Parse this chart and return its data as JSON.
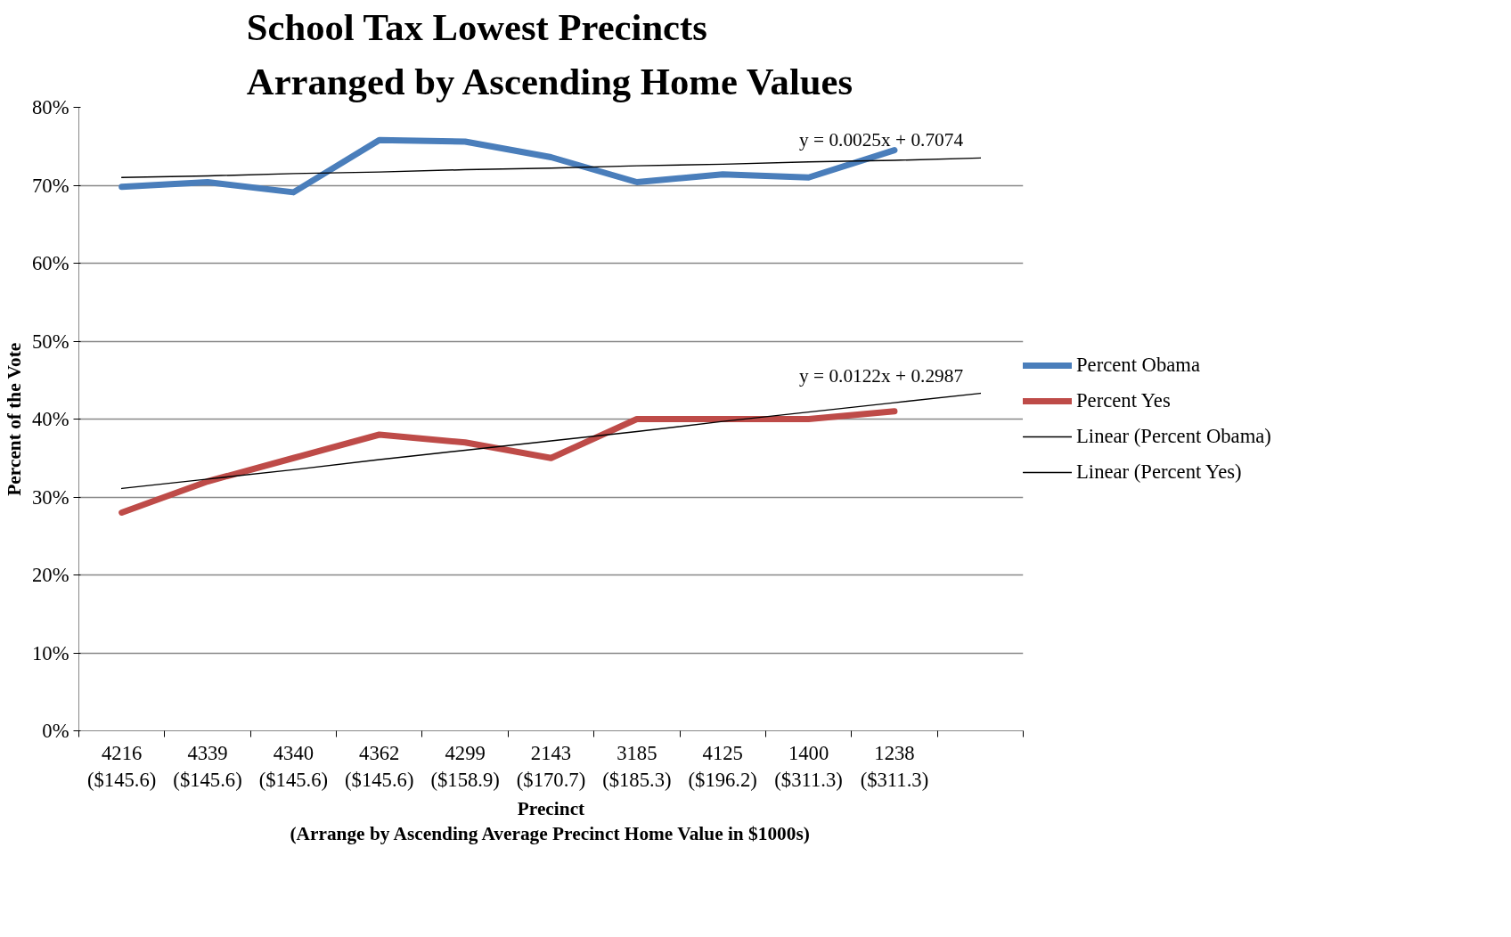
{
  "chart_data": {
    "type": "line",
    "title": "School Tax Lowest Precincts\nArranged by Ascending Home Values",
    "xlabel": "Precinct\n(Arrange by Ascending Average Precinct Home Value in $1000s)",
    "ylabel": "Percent of the Vote",
    "categories": [
      "4216\n($145.6)",
      "4339\n($145.6)",
      "4340\n($145.6)",
      "4362\n($145.6)",
      "4299\n($158.9)",
      "2143\n($170.7)",
      "3185\n($185.3)",
      "4125\n($196.2)",
      "1400\n($311.3)",
      "1238\n($311.3)",
      null
    ],
    "series": [
      {
        "name": "Percent Obama",
        "color": "#4a7ebb",
        "values": [
          69.8,
          70.4,
          69.1,
          75.8,
          75.6,
          73.6,
          70.4,
          71.4,
          71.0,
          74.5,
          null
        ]
      },
      {
        "name": "Percent Yes",
        "color": "#be4b48",
        "values": [
          28,
          32,
          35,
          38,
          37,
          35,
          40,
          40,
          40,
          41,
          null
        ]
      },
      {
        "name": "Linear (Percent Obama)",
        "color": "#000000",
        "values": [
          71.0,
          71.2,
          71.5,
          71.7,
          72.0,
          72.2,
          72.5,
          72.7,
          73.0,
          73.2,
          73.5
        ]
      },
      {
        "name": "Linear (Percent Yes)",
        "color": "#000000",
        "values": [
          31.1,
          32.3,
          33.5,
          34.8,
          36.0,
          37.2,
          38.4,
          39.7,
          40.9,
          42.1,
          43.3
        ]
      }
    ],
    "annotations": [
      "y = 0.0025x + 0.7074",
      "y = 0.0122x + 0.2987"
    ],
    "ylim": [
      0,
      80
    ],
    "yticks": [
      {
        "value": 0,
        "label": "0%"
      },
      {
        "value": 10,
        "label": "10%"
      },
      {
        "value": 20,
        "label": "20%"
      },
      {
        "value": 30,
        "label": "30%"
      },
      {
        "value": 40,
        "label": "40%"
      },
      {
        "value": 50,
        "label": "50%"
      },
      {
        "value": 60,
        "label": "60%"
      },
      {
        "value": 70,
        "label": "70%"
      },
      {
        "value": 80,
        "label": "80%"
      }
    ],
    "grid": "y",
    "legend": "right",
    "marker": "none",
    "line_style": "solid"
  }
}
